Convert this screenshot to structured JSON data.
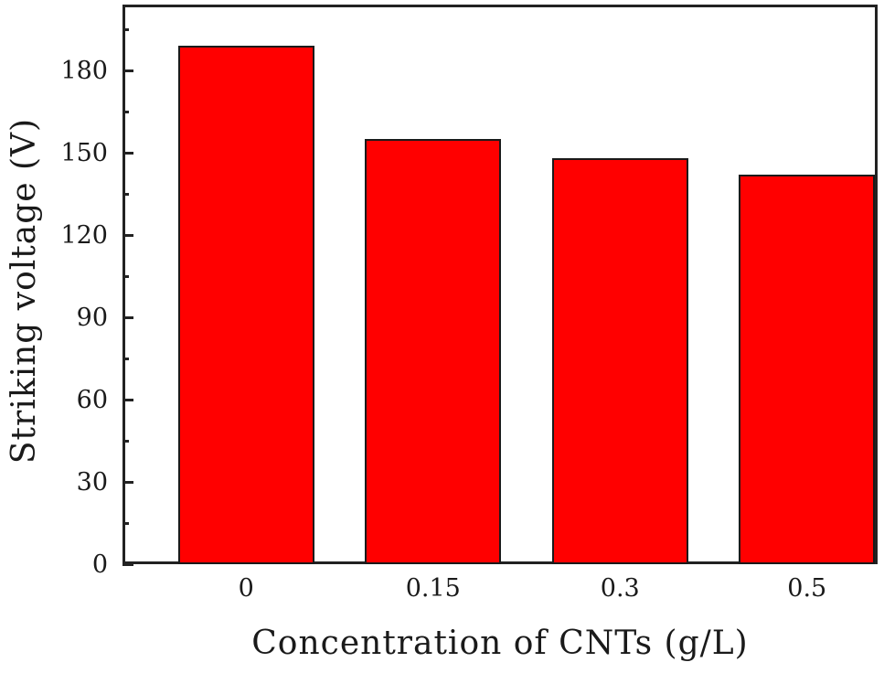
{
  "chart_data": {
    "type": "bar",
    "title": "",
    "xlabel": "Concentration of CNTs (g/L)",
    "ylabel": "Striking voltage (V)",
    "categories": [
      "0",
      "0.15",
      "0.3",
      "0.5"
    ],
    "values": [
      189,
      155,
      148,
      142
    ],
    "ylim": [
      0,
      204
    ],
    "yticks": [
      0,
      30,
      60,
      90,
      120,
      150,
      180
    ],
    "yticks_labels": [
      "0",
      "30",
      "60",
      "90",
      "120",
      "150",
      "180"
    ],
    "minor_yticks": [
      15,
      45,
      75,
      105,
      135,
      165,
      195
    ],
    "grid": false,
    "legend": null,
    "bar_color": "#ff0000",
    "edge_color": "#1a1a1a"
  }
}
